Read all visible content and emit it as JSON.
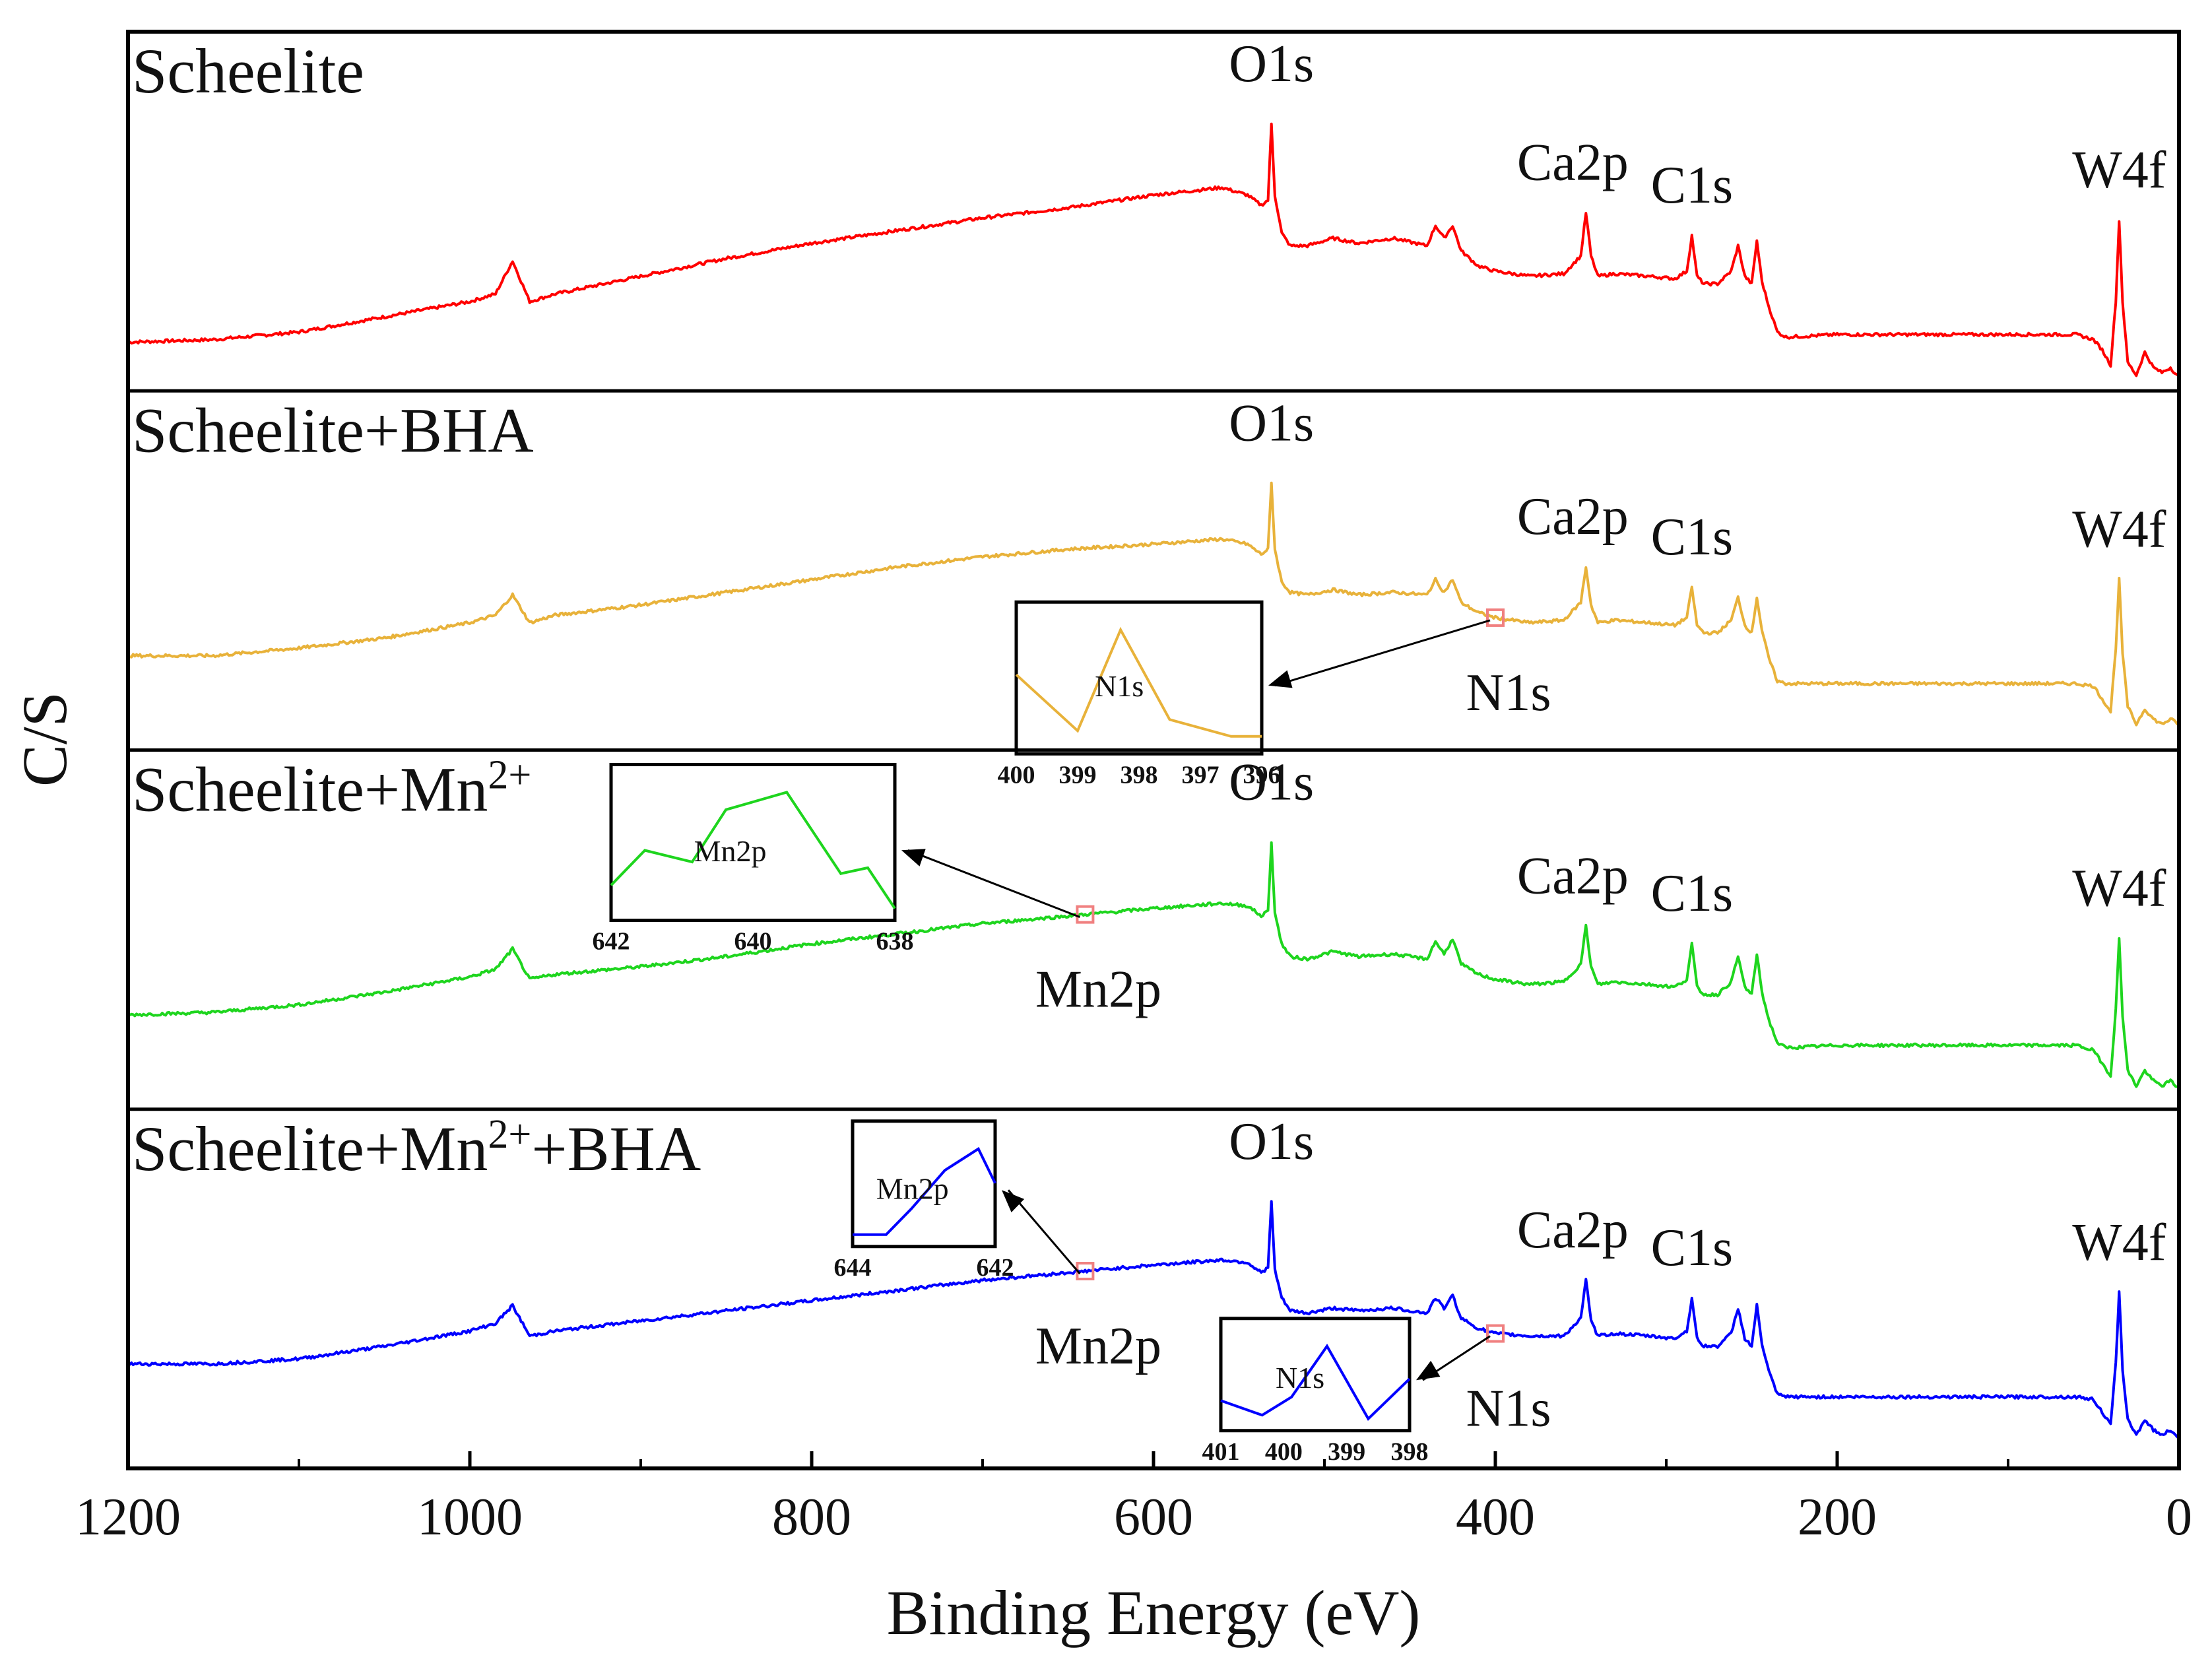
{
  "chart_data": {
    "type": "line",
    "xlabel": "Binding Energy (eV)",
    "ylabel": "C/S",
    "xlim": [
      1200,
      0
    ],
    "x_ticks": [
      "1200",
      "1000",
      "800",
      "600",
      "400",
      "200",
      "0"
    ],
    "x_tick_values": [
      1200,
      1000,
      800,
      600,
      400,
      200,
      0
    ],
    "y_ticks": [],
    "grid": false,
    "legend": "none",
    "panels": [
      {
        "label": "Scheelite",
        "label_sup": "",
        "label_suffix": "",
        "color": "#ff0000",
        "peaks": [
          {
            "name": "O1s",
            "x": 531
          },
          {
            "name": "Ca2p",
            "x": 347
          },
          {
            "name": "C1s",
            "x": 285
          },
          {
            "name": "W4f",
            "x": 35
          }
        ],
        "series": {
          "x": [
            1200,
            1150,
            1100,
            1050,
            1000,
            985,
            975,
            965,
            950,
            900,
            850,
            800,
            750,
            700,
            650,
            600,
            560,
            545,
            537,
            533,
            531,
            529,
            525,
            520,
            510,
            495,
            480,
            460,
            440,
            435,
            430,
            425,
            420,
            410,
            400,
            380,
            360,
            350,
            347,
            344,
            340,
            330,
            310,
            295,
            288,
            285,
            282,
            278,
            270,
            262,
            258,
            254,
            250,
            247,
            244,
            240,
            235,
            230,
            200,
            150,
            100,
            60,
            50,
            45,
            40,
            37,
            35,
            33,
            30,
            25,
            20,
            15,
            10,
            5,
            0
          ],
          "y": [
            0.14,
            0.15,
            0.18,
            0.24,
            0.3,
            0.33,
            0.46,
            0.3,
            0.33,
            0.4,
            0.47,
            0.53,
            0.58,
            0.63,
            0.67,
            0.72,
            0.75,
            0.72,
            0.68,
            0.7,
            1.0,
            0.72,
            0.57,
            0.52,
            0.52,
            0.55,
            0.53,
            0.55,
            0.52,
            0.6,
            0.55,
            0.6,
            0.5,
            0.44,
            0.42,
            0.4,
            0.41,
            0.48,
            0.65,
            0.48,
            0.4,
            0.41,
            0.4,
            0.39,
            0.42,
            0.56,
            0.4,
            0.37,
            0.37,
            0.42,
            0.52,
            0.4,
            0.37,
            0.54,
            0.38,
            0.28,
            0.18,
            0.16,
            0.17,
            0.17,
            0.17,
            0.17,
            0.15,
            0.11,
            0.05,
            0.3,
            0.62,
            0.3,
            0.06,
            0.01,
            0.1,
            0.04,
            0.02,
            0.04,
            0.0
          ]
        }
      },
      {
        "label": "Scheelite+BHA",
        "label_sup": "",
        "label_suffix": "",
        "color": "#e8b23a",
        "peaks": [
          {
            "name": "O1s",
            "x": 531
          },
          {
            "name": "Ca2p",
            "x": 347
          },
          {
            "name": "C1s",
            "x": 285
          },
          {
            "name": "W4f",
            "x": 35
          }
        ],
        "markers": [
          {
            "name": "N1s",
            "x": 400
          }
        ],
        "insets": [
          {
            "title": "N1s",
            "x_ticks": [
              "400",
              "399",
              "398",
              "397",
              "396"
            ],
            "x": [
              400,
              399,
              398.3,
              397.5,
              396.5,
              396
            ],
            "y": [
              0.6,
              0.1,
              1.0,
              0.2,
              0.05,
              0.05
            ]
          }
        ],
        "series": {
          "x": [
            1200,
            1150,
            1100,
            1050,
            1000,
            985,
            975,
            965,
            950,
            900,
            850,
            800,
            750,
            700,
            650,
            600,
            560,
            545,
            537,
            533,
            531,
            529,
            525,
            520,
            510,
            495,
            480,
            460,
            440,
            435,
            430,
            425,
            420,
            410,
            400,
            380,
            360,
            350,
            347,
            344,
            340,
            330,
            310,
            295,
            288,
            285,
            282,
            278,
            270,
            262,
            258,
            254,
            250,
            247,
            244,
            240,
            235,
            230,
            200,
            150,
            100,
            60,
            50,
            45,
            40,
            37,
            35,
            33,
            30,
            25,
            20,
            15,
            10,
            5,
            0
          ],
          "y": [
            0.32,
            0.32,
            0.35,
            0.39,
            0.45,
            0.48,
            0.56,
            0.45,
            0.48,
            0.52,
            0.57,
            0.62,
            0.67,
            0.71,
            0.74,
            0.76,
            0.78,
            0.76,
            0.72,
            0.74,
            1.0,
            0.74,
            0.61,
            0.57,
            0.56,
            0.58,
            0.56,
            0.57,
            0.56,
            0.62,
            0.57,
            0.62,
            0.53,
            0.49,
            0.47,
            0.45,
            0.46,
            0.53,
            0.67,
            0.52,
            0.45,
            0.46,
            0.45,
            0.44,
            0.47,
            0.59,
            0.44,
            0.41,
            0.41,
            0.46,
            0.55,
            0.44,
            0.41,
            0.55,
            0.42,
            0.31,
            0.22,
            0.21,
            0.21,
            0.21,
            0.21,
            0.21,
            0.2,
            0.15,
            0.1,
            0.35,
            0.62,
            0.33,
            0.12,
            0.05,
            0.11,
            0.07,
            0.05,
            0.07,
            0.05
          ]
        }
      },
      {
        "label": "Scheelite+Mn",
        "label_sup": "2+",
        "label_suffix": "",
        "color": "#1ed51e",
        "peaks": [
          {
            "name": "O1s",
            "x": 531
          },
          {
            "name": "Ca2p",
            "x": 347
          },
          {
            "name": "C1s",
            "x": 285
          },
          {
            "name": "W4f",
            "x": 35
          }
        ],
        "markers": [
          {
            "name": "Mn2p",
            "x": 640
          }
        ],
        "insets": [
          {
            "title": "Mn2p",
            "x_ticks": [
              "642",
              "640",
              "638"
            ],
            "x": [
              642,
              641.5,
              640.8,
              640.3,
              639.4,
              638.6,
              638.2,
              637.8
            ],
            "y": [
              0.2,
              0.5,
              0.4,
              0.85,
              1.0,
              0.3,
              0.35,
              0.0
            ]
          }
        ],
        "series": {
          "x": [
            1200,
            1150,
            1100,
            1050,
            1000,
            985,
            975,
            965,
            950,
            900,
            850,
            800,
            750,
            700,
            650,
            600,
            560,
            545,
            537,
            533,
            531,
            529,
            525,
            520,
            510,
            495,
            480,
            460,
            440,
            435,
            430,
            425,
            420,
            410,
            400,
            380,
            360,
            350,
            347,
            344,
            340,
            330,
            310,
            295,
            288,
            285,
            282,
            278,
            270,
            262,
            258,
            254,
            250,
            247,
            244,
            240,
            235,
            230,
            200,
            150,
            100,
            60,
            50,
            45,
            40,
            37,
            35,
            33,
            30,
            25,
            20,
            15,
            10,
            5,
            0
          ],
          "y": [
            0.32,
            0.33,
            0.36,
            0.41,
            0.47,
            0.5,
            0.58,
            0.46,
            0.48,
            0.51,
            0.55,
            0.6,
            0.64,
            0.68,
            0.71,
            0.74,
            0.76,
            0.75,
            0.71,
            0.73,
            1.0,
            0.72,
            0.6,
            0.55,
            0.54,
            0.57,
            0.55,
            0.56,
            0.54,
            0.61,
            0.56,
            0.62,
            0.52,
            0.48,
            0.46,
            0.44,
            0.45,
            0.52,
            0.67,
            0.51,
            0.44,
            0.45,
            0.44,
            0.43,
            0.46,
            0.6,
            0.43,
            0.4,
            0.4,
            0.45,
            0.55,
            0.43,
            0.4,
            0.56,
            0.41,
            0.3,
            0.21,
            0.19,
            0.2,
            0.2,
            0.2,
            0.2,
            0.18,
            0.13,
            0.08,
            0.34,
            0.62,
            0.32,
            0.1,
            0.04,
            0.1,
            0.06,
            0.04,
            0.06,
            0.03
          ]
        }
      },
      {
        "label": "Scheelite+Mn",
        "label_sup": "2+",
        "label_suffix": "+BHA",
        "color": "#0000ff",
        "peaks": [
          {
            "name": "O1s",
            "x": 531
          },
          {
            "name": "Ca2p",
            "x": 347
          },
          {
            "name": "C1s",
            "x": 285
          },
          {
            "name": "W4f",
            "x": 35
          }
        ],
        "markers": [
          {
            "name": "Mn2p",
            "x": 640
          },
          {
            "name": "N1s",
            "x": 400
          }
        ],
        "insets": [
          {
            "title": "Mn2p",
            "x_ticks": [
              "644",
              "642"
            ],
            "x": [
              644,
              643.2,
              642.6,
              641.8,
              641.0,
              640.6
            ],
            "y": [
              0.0,
              0.0,
              0.3,
              0.75,
              1.0,
              0.6
            ]
          },
          {
            "title": "N1s",
            "x_ticks": [
              "401",
              "400",
              "399",
              "398"
            ],
            "x": [
              401.2,
              400.5,
              400,
              399.4,
              398.7,
              398
            ],
            "y": [
              0.25,
              0.05,
              0.3,
              1.0,
              0.0,
              0.55
            ]
          }
        ],
        "series": {
          "x": [
            1200,
            1150,
            1100,
            1050,
            1000,
            985,
            975,
            965,
            950,
            900,
            850,
            800,
            750,
            700,
            650,
            600,
            560,
            545,
            537,
            533,
            531,
            529,
            525,
            520,
            510,
            495,
            480,
            460,
            440,
            435,
            430,
            425,
            420,
            410,
            400,
            380,
            360,
            350,
            347,
            344,
            340,
            330,
            310,
            295,
            288,
            285,
            282,
            278,
            270,
            262,
            258,
            254,
            250,
            247,
            244,
            240,
            235,
            230,
            200,
            150,
            100,
            60,
            50,
            45,
            40,
            37,
            35,
            33,
            30,
            25,
            20,
            15,
            10,
            5,
            0
          ],
          "y": [
            0.36,
            0.36,
            0.38,
            0.43,
            0.49,
            0.52,
            0.59,
            0.47,
            0.49,
            0.53,
            0.57,
            0.61,
            0.65,
            0.69,
            0.72,
            0.75,
            0.77,
            0.76,
            0.72,
            0.74,
            1.0,
            0.73,
            0.62,
            0.57,
            0.56,
            0.58,
            0.57,
            0.58,
            0.56,
            0.62,
            0.58,
            0.63,
            0.54,
            0.5,
            0.48,
            0.47,
            0.47,
            0.54,
            0.69,
            0.53,
            0.47,
            0.48,
            0.47,
            0.46,
            0.49,
            0.62,
            0.46,
            0.43,
            0.43,
            0.48,
            0.58,
            0.46,
            0.43,
            0.59,
            0.44,
            0.33,
            0.24,
            0.23,
            0.23,
            0.23,
            0.23,
            0.23,
            0.22,
            0.17,
            0.12,
            0.36,
            0.64,
            0.34,
            0.14,
            0.08,
            0.14,
            0.1,
            0.08,
            0.1,
            0.07
          ]
        }
      }
    ]
  }
}
